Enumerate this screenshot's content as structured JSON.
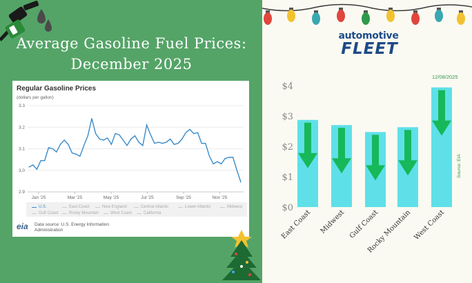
{
  "title": "Average Gasoline Fuel Prices: December 2025",
  "brand": {
    "top": "automotive",
    "bottom": "FLEET"
  },
  "colors": {
    "left_bg": "#54a467",
    "right_bg": "#fbfaf2",
    "line": "#3a8bc9",
    "bar": "#5fe0e8",
    "arrow": "#16b85a",
    "brand": "#1d4a86"
  },
  "icons": [
    "fuel-nozzle-icon",
    "oil-drop-icon",
    "christmas-lights",
    "christmas-tree-icon",
    "down-arrow-icon"
  ],
  "chart_data": [
    {
      "type": "line",
      "title": "Regular Gasoline Prices",
      "subtitle": "(dollars per gallon)",
      "ylim": [
        2.9,
        3.3
      ],
      "yticks": [
        "2.9",
        "3.0",
        "3.1",
        "3.2",
        "3.3"
      ],
      "xticks": [
        "Jan '25",
        "Mar '25",
        "May '25",
        "Jul '25",
        "Sep '25",
        "Nov '25"
      ],
      "grid": true,
      "series": [
        {
          "name": "U.S.",
          "values": [
            3.015,
            3.025,
            3.005,
            3.045,
            3.045,
            3.105,
            3.1,
            3.085,
            3.12,
            3.14,
            3.12,
            3.08,
            3.075,
            3.065,
            3.115,
            3.16,
            3.24,
            3.17,
            3.145,
            3.14,
            3.15,
            3.12,
            3.17,
            3.165,
            3.14,
            3.115,
            3.145,
            3.16,
            3.13,
            3.115,
            3.21,
            3.165,
            3.125,
            3.13,
            3.125,
            3.13,
            3.145,
            3.12,
            3.125,
            3.145,
            3.175,
            3.19,
            3.17,
            3.175,
            3.125,
            3.125,
            3.065,
            3.03,
            3.04,
            3.03,
            3.055,
            3.06,
            3.06,
            3.0,
            2.945
          ]
        }
      ],
      "legend": [
        "U.S.",
        "East Coast",
        "New England",
        "Central Atlantic",
        "Lower Atlantic",
        "Midwest",
        "Gulf Coast",
        "Rocky Mountain",
        "West Coast",
        "California"
      ],
      "source": "Data source: U.S. Energy Information Administration",
      "logo": "eia"
    },
    {
      "type": "bar",
      "categories": [
        "East Coast",
        "Midwest",
        "Gulf Coast",
        "Rocky Mountain",
        "West Coast"
      ],
      "values": [
        2.87,
        2.7,
        2.47,
        2.63,
        3.94
      ],
      "ylim": [
        0,
        4
      ],
      "yticks": [
        "$0",
        "$1",
        "$2",
        "$3",
        "$4"
      ],
      "annotation": "12/08/2025",
      "source_label": "Source: EIA",
      "trend": "down"
    }
  ]
}
